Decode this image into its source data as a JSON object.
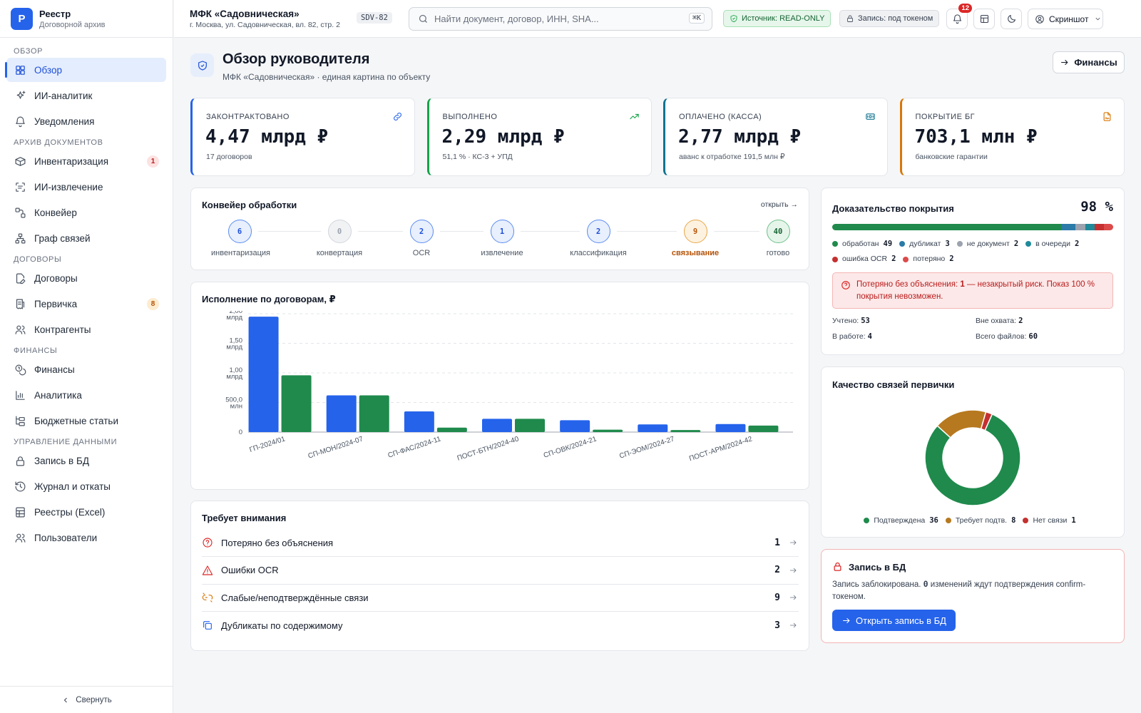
{
  "sidebar": {
    "brand": {
      "logo_letter": "Р",
      "title": "Реестр",
      "subtitle": "Договорной архив"
    },
    "sections": [
      {
        "title": "Обзор",
        "items": [
          {
            "label": "Обзор",
            "icon": "dashboard-icon",
            "active": true
          },
          {
            "label": "ИИ-аналитик",
            "icon": "sparkles-icon"
          },
          {
            "label": "Уведомления",
            "icon": "bell-icon"
          }
        ]
      },
      {
        "title": "Архив документов",
        "items": [
          {
            "label": "Инвентаризация",
            "icon": "boxes-icon",
            "badge": "1",
            "badge_color": "red"
          },
          {
            "label": "ИИ-извлечение",
            "icon": "scan-text-icon"
          },
          {
            "label": "Конвейер",
            "icon": "workflow-icon"
          },
          {
            "label": "Граф связей",
            "icon": "network-icon"
          }
        ]
      },
      {
        "title": "Договоры",
        "items": [
          {
            "label": "Договоры",
            "icon": "file-pen-icon"
          },
          {
            "label": "Первичка",
            "icon": "receipt-icon",
            "badge": "8",
            "badge_color": "orange"
          },
          {
            "label": "Контрагенты",
            "icon": "users-icon"
          }
        ]
      },
      {
        "title": "Финансы",
        "items": [
          {
            "label": "Финансы",
            "icon": "coins-icon"
          },
          {
            "label": "Аналитика",
            "icon": "bar-chart-icon"
          },
          {
            "label": "Бюджетные статьи",
            "icon": "folder-tree-icon"
          }
        ]
      },
      {
        "title": "Управление данными",
        "items": [
          {
            "label": "Запись в БД",
            "icon": "lock-icon"
          },
          {
            "label": "Журнал и откаты",
            "icon": "history-icon"
          },
          {
            "label": "Реестры (Excel)",
            "icon": "sheet-icon"
          },
          {
            "label": "Пользователи",
            "icon": "users-icon"
          }
        ]
      }
    ],
    "collapse_label": "Свернуть"
  },
  "topbar": {
    "object_name": "МФК «Садовническая»",
    "object_address": "г. Москва, ул. Садовническая, вл. 82, стр. 2",
    "object_code": "SDV-82",
    "search_placeholder": "Найти документ, договор, ИНН, SHA...",
    "search_shortcut": "⌘K",
    "source_pill": "Источник: READ-ONLY",
    "write_pill": "Запись: под токеном",
    "notifications_count": "12",
    "user_label": "Скриншот"
  },
  "page": {
    "title": "Обзор руководителя",
    "subtitle": "МФК «Садовническая» · единая картина по объекту",
    "finance_button": "Финансы"
  },
  "kpis": [
    {
      "label": "Законтрактовано",
      "value": "4,47 млрд ₽",
      "sub": "17 договоров",
      "color": "#2563eb",
      "icon": "link-icon"
    },
    {
      "label": "Выполнено",
      "value": "2,29 млрд ₽",
      "sub": "51,1 % · КС-3 + УПД",
      "color": "#16a34a",
      "icon": "trending-up-icon"
    },
    {
      "label": "Оплачено (касса)",
      "value": "2,77 млрд ₽",
      "sub": "аванс к отработке 191,5 млн ₽",
      "color": "#0e7490",
      "icon": "banknote-icon"
    },
    {
      "label": "Покрытие БГ",
      "value": "703,1 млн ₽",
      "sub": "банковские гарантии",
      "color": "#d97706",
      "icon": "file-signature-icon"
    }
  ],
  "pipeline": {
    "title": "Конвейер обработки",
    "open_link": "открыть →",
    "stages": [
      {
        "count": "6",
        "label": "инвентаризация",
        "style": "blue"
      },
      {
        "count": "0",
        "label": "конвертация",
        "style": "gray"
      },
      {
        "count": "2",
        "label": "OCR",
        "style": "blue"
      },
      {
        "count": "1",
        "label": "извлечение",
        "style": "blue"
      },
      {
        "count": "2",
        "label": "классификация",
        "style": "blue"
      },
      {
        "count": "9",
        "label": "связывание",
        "style": "orange"
      },
      {
        "count": "40",
        "label": "готово",
        "style": "green"
      }
    ]
  },
  "chart_data": [
    {
      "type": "bar",
      "title": "Исполнение по договорам, ₽",
      "categories": [
        "ГП-2024/01",
        "СП-МОН/2024-07",
        "СП-ФАС/2024-11",
        "ПОСТ-БТН/2024-40",
        "СП-ОВК/2024-21",
        "СП-ЭОМ/2024-27",
        "ПОСТ-АРМ/2024-42"
      ],
      "series": [
        {
          "color": "#2563eb",
          "values": [
            1950000000,
            620000000,
            350000000,
            225000000,
            200000000,
            130000000,
            135000000
          ]
        },
        {
          "color": "#1f8a4c",
          "values": [
            960000000,
            620000000,
            75000000,
            225000000,
            40000000,
            35000000,
            110000000
          ]
        }
      ],
      "ylim": [
        0,
        2000000000
      ],
      "yticks": [
        {
          "value": 0,
          "label": "0"
        },
        {
          "value": 500000000,
          "label": "500,0 млн"
        },
        {
          "value": 1000000000,
          "label": "1,00 млрд"
        },
        {
          "value": 1500000000,
          "label": "1,50 млрд"
        },
        {
          "value": 2000000000,
          "label": "2,00 млрд"
        }
      ],
      "grid": true
    },
    {
      "type": "pie",
      "title": "Качество связей первички",
      "slices": [
        {
          "label": "Подтверждена",
          "value": 36,
          "color": "#1f8a4c"
        },
        {
          "label": "Требует подтв.",
          "value": 8,
          "color": "#b7791f"
        },
        {
          "label": "Нет связи",
          "value": 1,
          "color": "#c53030"
        }
      ]
    }
  ],
  "coverage": {
    "title": "Доказательство покрытия",
    "percent": "98 %",
    "bar": [
      {
        "label": "обработан",
        "value": 49,
        "color": "#1f8a4c"
      },
      {
        "label": "дубликат",
        "value": 3,
        "color": "#2b7aa8"
      },
      {
        "label": "не документ",
        "value": 2,
        "color": "#9ca3af"
      },
      {
        "label": "в очереди",
        "value": 2,
        "color": "#1f8a9a"
      },
      {
        "label": "ошибка OCR",
        "value": 2,
        "color": "#c53030"
      },
      {
        "label": "потеряно",
        "value": 2,
        "color": "#dc4a4a"
      }
    ],
    "alert": {
      "prefix": "Потеряно без объяснения: ",
      "count": "1",
      "suffix": " — незакрытый риск. Показ 100 % покрытия невозможен."
    },
    "stats": [
      {
        "label": "Учтено:",
        "value": "53"
      },
      {
        "label": "Вне охвата:",
        "value": "2"
      },
      {
        "label": "В работе:",
        "value": "4"
      },
      {
        "label": "Всего файлов:",
        "value": "60"
      }
    ]
  },
  "attention": {
    "title": "Требует внимания",
    "items": [
      {
        "label": "Потеряно без объяснения",
        "count": "1",
        "icon": "circle-help-icon",
        "color": "#dc2626"
      },
      {
        "label": "Ошибки OCR",
        "count": "2",
        "icon": "alert-triangle-icon",
        "color": "#dc2626"
      },
      {
        "label": "Слабые/неподтверждённые связи",
        "count": "9",
        "icon": "unlink-icon",
        "color": "#d97706"
      },
      {
        "label": "Дубликаты по содержимому",
        "count": "3",
        "icon": "copy-icon",
        "color": "#2563eb"
      }
    ]
  },
  "db_write": {
    "title": "Запись в БД",
    "text_prefix": "Запись заблокирована. ",
    "count": "0",
    "text_suffix": " изменений ждут подтверждения confirm-токеном.",
    "button": "Открыть запись в БД"
  }
}
